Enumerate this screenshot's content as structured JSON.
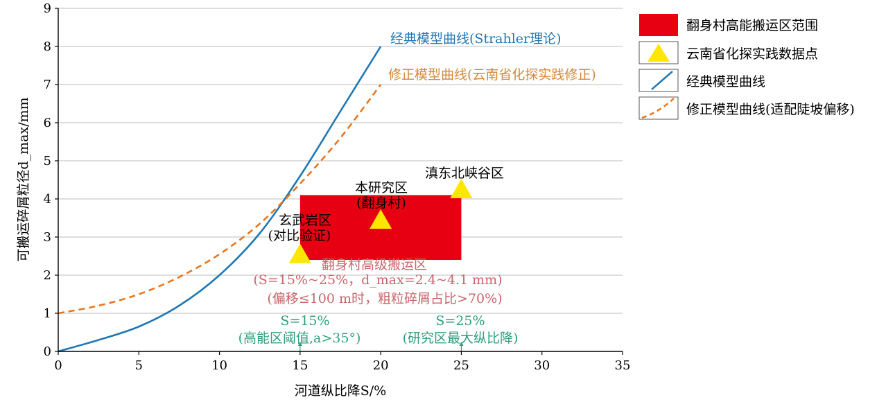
{
  "chart_data": {
    "type": "line",
    "xlabel": "河道纵比降S/%",
    "ylabel": "可搬运碎屑粒径d_max/mm",
    "xlim": [
      0,
      35
    ],
    "ylim": [
      0,
      9
    ],
    "x_ticks": [
      0,
      5,
      10,
      15,
      20,
      25,
      30,
      35
    ],
    "y_ticks": [
      0,
      1,
      2,
      3,
      4,
      5,
      6,
      7,
      8,
      9
    ],
    "grid": "horizontal",
    "legend_position": "right",
    "series": [
      {
        "name": "经典模型曲线",
        "style": "solid",
        "color": "#1f77b4",
        "x": [
          0,
          2.5,
          5,
          7.5,
          10,
          12.5,
          15,
          17.5,
          20
        ],
        "y": [
          0,
          0.3,
          0.65,
          1.2,
          2.0,
          3.1,
          4.6,
          6.3,
          8.0
        ]
      },
      {
        "name": "修正模型曲线(适配陡坡偏移)",
        "style": "dashed",
        "color": "#e8761e",
        "x": [
          0,
          2.5,
          5,
          7.5,
          10,
          12.5,
          15,
          17.5,
          20
        ],
        "y": [
          1.0,
          1.2,
          1.5,
          1.95,
          2.55,
          3.35,
          4.4,
          5.6,
          7.0
        ]
      }
    ],
    "region": {
      "name": "翻身村高能搬运区范围",
      "x": [
        15,
        25
      ],
      "y": [
        2.4,
        4.1
      ],
      "color": "#e60012"
    },
    "points_series": {
      "name": "云南省化探实践数据点",
      "color": "#ffe600",
      "points": [
        {
          "x": 15,
          "y": 2.5
        },
        {
          "x": 20,
          "y": 3.4
        },
        {
          "x": 25,
          "y": 4.2
        }
      ]
    },
    "curve_labels": [
      {
        "text": "经典模型曲线(Strahler理论)",
        "color": "#1f77b4"
      },
      {
        "text": "修正模型曲线(云南省化探实践修正)",
        "color": "#d4893a"
      }
    ],
    "point_labels": [
      {
        "lines": [
          "玄武岩区",
          "(对比验证)"
        ]
      },
      {
        "lines": [
          "本研究区",
          "(翻身村)"
        ]
      },
      {
        "lines": [
          "滇东北峡谷区"
        ]
      }
    ],
    "region_notes": [
      "翻身村高级搬运区",
      "(S=15%~25%，d_max=2.4~4.1 mm)",
      "(偏移≤100 m时，粗粒碎屑占比>70%)"
    ],
    "threshold_notes": [
      {
        "x": 15,
        "lines": [
          "S=15%",
          "(高能区阈值,a>35°)"
        ]
      },
      {
        "x": 25,
        "lines": [
          "S=25%",
          "(研究区最大纵比降)"
        ]
      }
    ],
    "colors": {
      "annotation_red": "#c9656b",
      "annotation_green": "#2f9e7c",
      "grid": "#bdbdbd"
    }
  }
}
